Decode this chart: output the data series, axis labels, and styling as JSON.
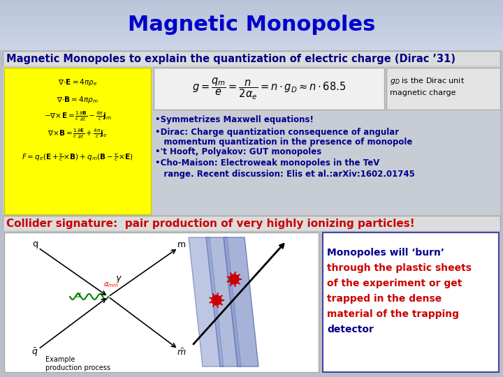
{
  "title": "Magnetic Monopoles",
  "title_color": "#0000CC",
  "title_fontsize": 22,
  "subtitle": "Magnetic Monopoles to explain the quantization of electric charge (Dirac ’31)",
  "subtitle_color": "#00008B",
  "subtitle_fontsize": 10.5,
  "gD_line1": "g",
  "gD_line2": "is the Dirac unit",
  "gD_line3": "magnetic charge",
  "gD_fontsize": 8,
  "yellow_bg": "#FFFF00",
  "bullet_color": "#00008B",
  "bullet_fontsize": 8.5,
  "collider_text": "Collider signature:  pair production of very highly ionizing particles!",
  "collider_color": "#CC0000",
  "collider_fontsize": 11,
  "monopole_text_lines": [
    "Monopoles will ‘burn’",
    "through the plastic sheets",
    "of the experiment or get",
    "trapped in the dense",
    "material of the trapping",
    "detector"
  ],
  "monopole_text_colors": [
    "#00008B",
    "#CC0000",
    "#CC0000",
    "#CC0000",
    "#CC0000",
    "#00008B"
  ],
  "monopole_fontsize": 10
}
